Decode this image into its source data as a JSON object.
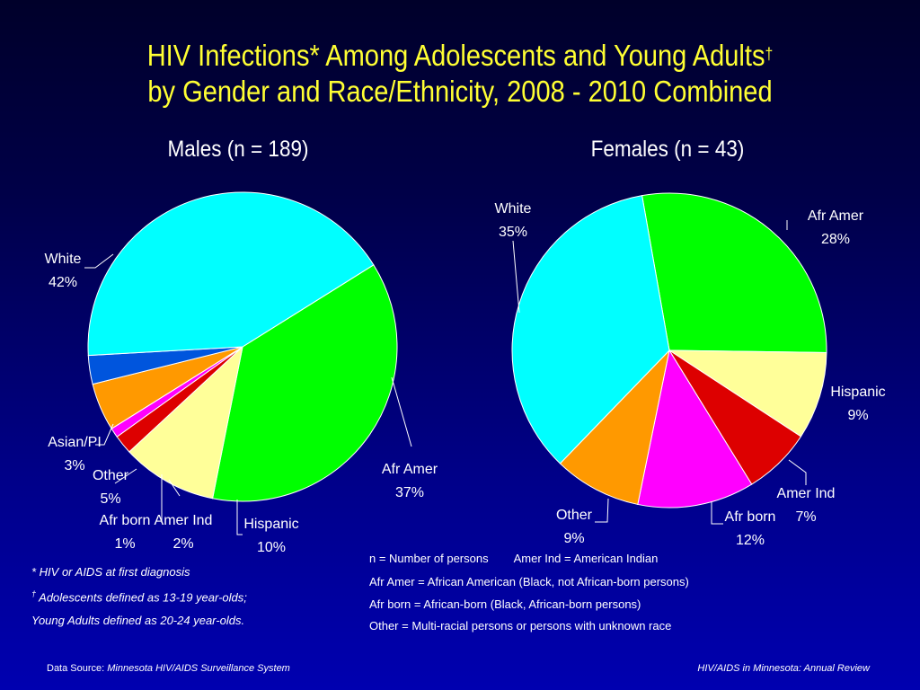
{
  "title": {
    "line1": "HIV Infections* Among Adolescents and Young Adults",
    "line1_mark": "†",
    "line2": "by Gender and Race/Ethnicity, 2008 - 2010 Combined"
  },
  "chart_data": [
    {
      "type": "pie",
      "title": "Males (n = 189)",
      "slices": [
        {
          "label": "Afr Amer",
          "value": 37,
          "value_label": "37%",
          "color": "#00ff00"
        },
        {
          "label": "Hispanic",
          "value": 10,
          "value_label": "10%",
          "color": "#ffff99"
        },
        {
          "label": "Amer Ind",
          "value": 2,
          "value_label": "2%",
          "color": "#dd0000"
        },
        {
          "label": "Afr born",
          "value": 1,
          "value_label": "1%",
          "color": "#ff00ff"
        },
        {
          "label": "Other",
          "value": 5,
          "value_label": "5%",
          "color": "#ff9900"
        },
        {
          "label": "Asian/PI",
          "value": 3,
          "value_label": "3%",
          "color": "#0055dd"
        },
        {
          "label": "White",
          "value": 42,
          "value_label": "42%",
          "color": "#00ffff"
        }
      ]
    },
    {
      "type": "pie",
      "title": "Females (n = 43)",
      "slices": [
        {
          "label": "Afr Amer",
          "value": 28,
          "value_label": "28%",
          "color": "#00ff00"
        },
        {
          "label": "Hispanic",
          "value": 9,
          "value_label": "9%",
          "color": "#ffff99"
        },
        {
          "label": "Amer Ind",
          "value": 7,
          "value_label": "7%",
          "color": "#dd0000"
        },
        {
          "label": "Afr born",
          "value": 12,
          "value_label": "12%",
          "color": "#ff00ff"
        },
        {
          "label": "Other",
          "value": 9,
          "value_label": "9%",
          "color": "#ff9900"
        },
        {
          "label": "White",
          "value": 35,
          "value_label": "35%",
          "color": "#00ffff"
        }
      ]
    }
  ],
  "footnotes": {
    "star": "* HIV or AIDS at first diagnosis",
    "dagger_mark": "†",
    "dagger": " Adolescents defined as 13-19 year-olds;",
    "dagger_cont": "Young Adults defined as 20-24 year-olds."
  },
  "legend": {
    "line1a": "n = Number of persons",
    "line1b": "Amer Ind = American Indian",
    "line2": "Afr Amer = African American (Black, not African-born persons)",
    "line3": "Afr born = African-born (Black, African-born persons)",
    "line4": "Other = Multi-racial persons or persons with unknown race"
  },
  "footer": {
    "source_prefix": "Data Source: ",
    "source": "Minnesota HIV/AIDS Surveillance System",
    "report": "HIV/AIDS in Minnesota: Annual Review"
  }
}
